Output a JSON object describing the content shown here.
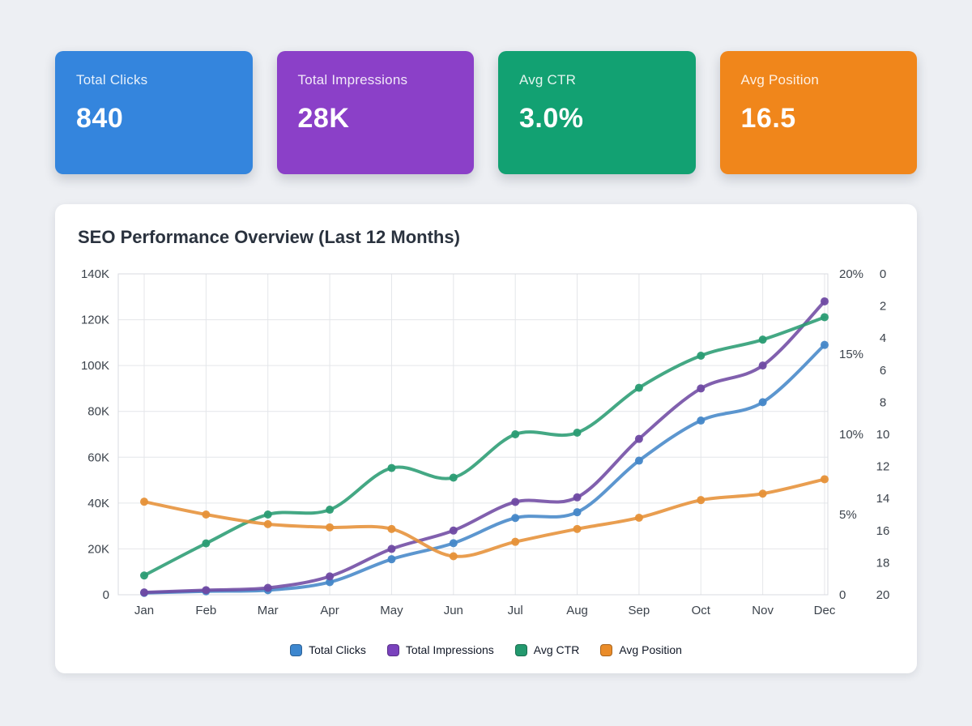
{
  "page": {
    "background": "#edeff3"
  },
  "kpi_cards": [
    {
      "label": "Total Clicks",
      "value": "840",
      "color": "#3485dd"
    },
    {
      "label": "Total Impressions",
      "value": "28K",
      "color": "#8b40c8"
    },
    {
      "label": "Avg CTR",
      "value": "3.0%",
      "color": "#12a172"
    },
    {
      "label": "Avg Position",
      "value": "16.5",
      "color": "#f0861b"
    }
  ],
  "chart_data": {
    "type": "line",
    "title": "SEO Performance Overview (Last 12 Months)",
    "categories": [
      "Jan",
      "Feb",
      "Mar",
      "Apr",
      "May",
      "Jun",
      "Jul",
      "Aug",
      "Sep",
      "Oct",
      "Nov",
      "Dec"
    ],
    "series": [
      {
        "name": "Total Clicks",
        "axis": "left",
        "color": "#4587c8",
        "swatch_color": "#3d87cf",
        "values": [
          800,
          1500,
          2000,
          5500,
          15500,
          22500,
          33500,
          36000,
          58500,
          76000,
          84000,
          109000
        ]
      },
      {
        "name": "Total Impressions",
        "axis": "left",
        "color": "#6f4aa3",
        "swatch_color": "#7a42bd",
        "values": [
          1000,
          2000,
          3000,
          8000,
          20000,
          28000,
          40500,
          42500,
          68000,
          90000,
          100000,
          128000
        ]
      },
      {
        "name": "Avg CTR",
        "axis": "percent",
        "color": "#2a9c73",
        "swatch_color": "#23996e",
        "values": [
          1.2,
          3.2,
          5.0,
          5.3,
          7.9,
          7.3,
          10.0,
          10.1,
          12.9,
          14.9,
          15.9,
          17.3
        ]
      },
      {
        "name": "Avg Position",
        "axis": "position",
        "color": "#e69138",
        "swatch_color": "#ea8c29",
        "values": [
          14.2,
          15.0,
          15.6,
          15.8,
          15.9,
          17.6,
          16.7,
          15.9,
          15.2,
          14.1,
          13.7,
          12.8
        ]
      }
    ],
    "axes": {
      "left": {
        "min": 0,
        "max": 140000,
        "ticks": [
          "0",
          "20K",
          "40K",
          "60K",
          "80K",
          "100K",
          "120K",
          "140K"
        ]
      },
      "percent": {
        "min": 0,
        "max": 20,
        "ticks": [
          "0",
          "5%",
          "10%",
          "15%",
          "20%"
        ]
      },
      "position": {
        "min": 0,
        "max": 20,
        "inverted": true,
        "ticks": [
          "0",
          "2",
          "4",
          "6",
          "8",
          "10",
          "12",
          "14",
          "16",
          "18",
          "20"
        ]
      }
    },
    "grid": true,
    "legend_position": "bottom",
    "grid_color": "#e4e6ea",
    "border_color": "#d8dbe0",
    "tick_color": "#3c434c"
  }
}
